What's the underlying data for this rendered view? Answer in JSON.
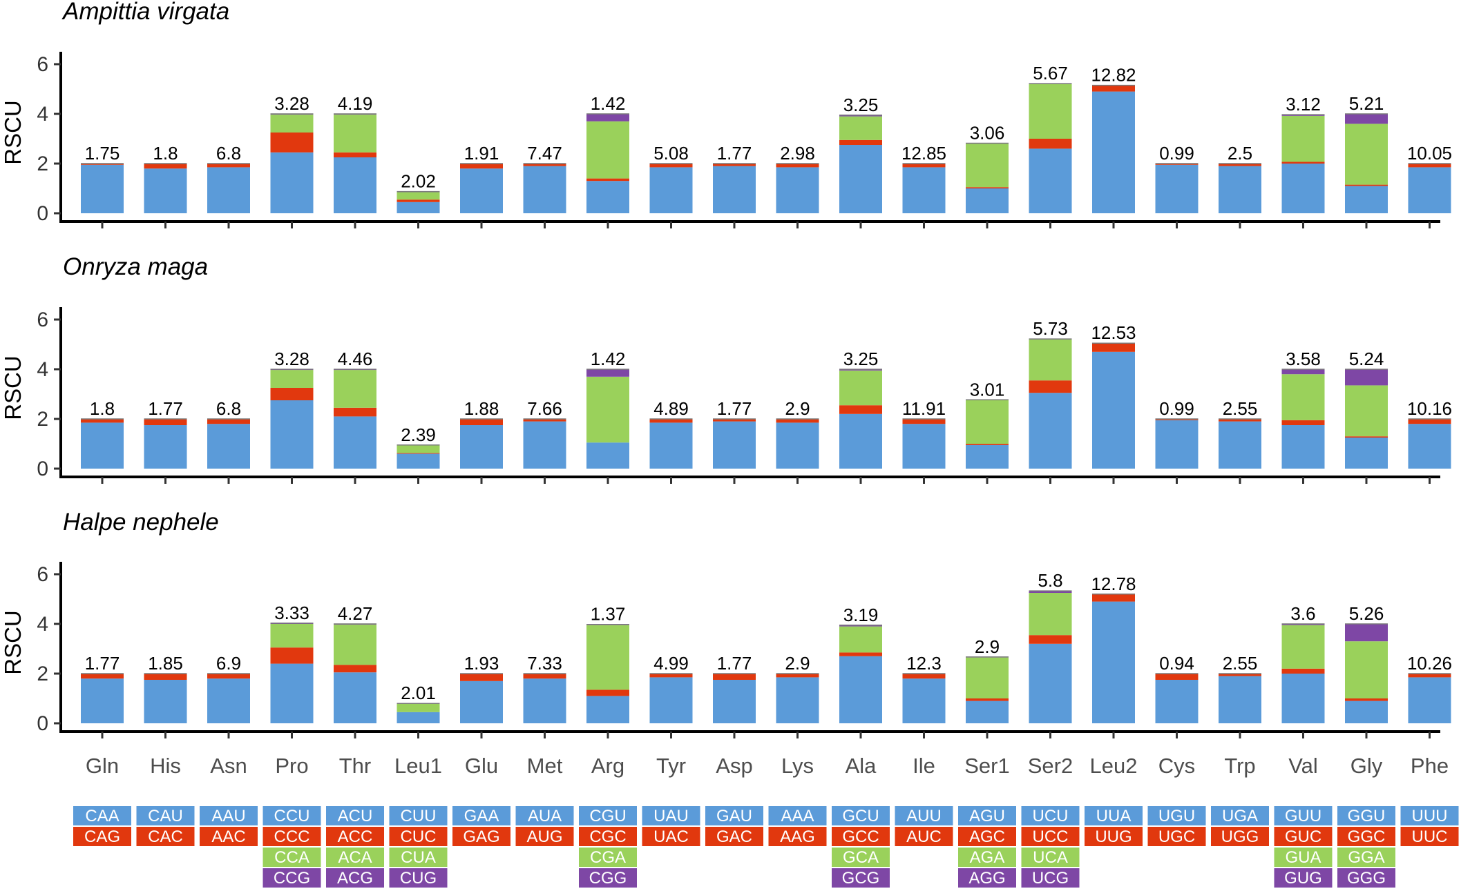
{
  "chart_data": {
    "type": "bar",
    "stacked": true,
    "ylabel": "RSCU",
    "ylim": [
      0,
      6.5
    ],
    "yticks": [
      0,
      2,
      4,
      6
    ],
    "grid": false,
    "layer_colors": [
      "#5B9BD9",
      "#E1380E",
      "#9AD15B",
      "#7E47A5"
    ],
    "categories": [
      "Gln",
      "His",
      "Asn",
      "Pro",
      "Thr",
      "Leu1",
      "Glu",
      "Met",
      "Arg",
      "Tyr",
      "Asp",
      "Lys",
      "Ala",
      "Ile",
      "Ser1",
      "Ser2",
      "Leu2",
      "Cys",
      "Trp",
      "Val",
      "Gly",
      "Phe"
    ],
    "codons": [
      [
        "CAA",
        "CAG"
      ],
      [
        "CAU",
        "CAC"
      ],
      [
        "AAU",
        "AAC"
      ],
      [
        "CCU",
        "CCC",
        "CCA",
        "CCG"
      ],
      [
        "ACU",
        "ACC",
        "ACA",
        "ACG"
      ],
      [
        "CUU",
        "CUC",
        "CUA",
        "CUG"
      ],
      [
        "GAA",
        "GAG"
      ],
      [
        "AUA",
        "AUG"
      ],
      [
        "CGU",
        "CGC",
        "CGA",
        "CGG"
      ],
      [
        "UAU",
        "UAC"
      ],
      [
        "GAU",
        "GAC"
      ],
      [
        "AAA",
        "AAG"
      ],
      [
        "GCU",
        "GCC",
        "GCA",
        "GCG"
      ],
      [
        "AUU",
        "AUC"
      ],
      [
        "AGU",
        "AGC",
        "AGA",
        "AGG"
      ],
      [
        "UCU",
        "UCC",
        "UCA",
        "UCG"
      ],
      [
        "UUA",
        "UUG"
      ],
      [
        "UGU",
        "UGC"
      ],
      [
        "UGA",
        "UGG"
      ],
      [
        "GUU",
        "GUC",
        "GUA",
        "GUG"
      ],
      [
        "GGU",
        "GGC",
        "GGA",
        "GGG"
      ],
      [
        "UUU",
        "UUC"
      ]
    ],
    "panels": [
      {
        "species": "Ampittia virgata",
        "labels": [
          "1.75",
          "1.8",
          "6.8",
          "3.28",
          "4.19",
          "2.02",
          "1.91",
          "7.47",
          "1.42",
          "5.08",
          "1.77",
          "2.98",
          "3.25",
          "12.85",
          "3.06",
          "5.67",
          "12.82",
          "0.99",
          "2.5",
          "3.12",
          "5.21",
          "10.05"
        ],
        "stacks": [
          [
            1.95,
            0.05
          ],
          [
            1.8,
            0.2
          ],
          [
            1.85,
            0.15
          ],
          [
            2.45,
            0.8,
            0.72,
            0.03
          ],
          [
            2.25,
            0.2,
            1.52,
            0.03
          ],
          [
            0.45,
            0.1,
            0.3,
            0.02
          ],
          [
            1.8,
            0.2
          ],
          [
            1.9,
            0.1
          ],
          [
            1.3,
            0.1,
            2.3,
            0.3
          ],
          [
            1.85,
            0.15
          ],
          [
            1.9,
            0.1
          ],
          [
            1.85,
            0.15
          ],
          [
            2.75,
            0.2,
            0.95,
            0.05
          ],
          [
            1.85,
            0.15
          ],
          [
            1.0,
            0.05,
            1.75,
            0.02
          ],
          [
            2.6,
            0.4,
            2.2,
            0.02
          ],
          [
            4.9,
            0.25
          ],
          [
            1.95,
            0.05
          ],
          [
            1.9,
            0.1
          ],
          [
            2.0,
            0.07,
            1.85,
            0.05
          ],
          [
            1.1,
            0.05,
            2.45,
            0.4
          ],
          [
            1.85,
            0.15
          ]
        ]
      },
      {
        "species": "Onryza maga",
        "labels": [
          "1.8",
          "1.77",
          "6.8",
          "3.28",
          "4.46",
          "2.39",
          "1.88",
          "7.66",
          "1.42",
          "4.89",
          "1.77",
          "2.9",
          "3.25",
          "11.91",
          "3.01",
          "5.73",
          "12.53",
          "0.99",
          "2.55",
          "3.58",
          "5.24",
          "10.16"
        ],
        "stacks": [
          [
            1.85,
            0.15
          ],
          [
            1.75,
            0.25
          ],
          [
            1.8,
            0.2
          ],
          [
            2.75,
            0.5,
            0.72,
            0.03
          ],
          [
            2.1,
            0.35,
            1.52,
            0.03
          ],
          [
            0.6,
            0.03,
            0.3,
            0.02
          ],
          [
            1.75,
            0.25
          ],
          [
            1.9,
            0.1
          ],
          [
            1.05,
            0.0,
            2.65,
            0.3
          ],
          [
            1.85,
            0.15
          ],
          [
            1.9,
            0.1
          ],
          [
            1.85,
            0.15
          ],
          [
            2.2,
            0.35,
            1.4,
            0.05
          ],
          [
            1.8,
            0.2
          ],
          [
            0.95,
            0.05,
            1.75,
            0.02
          ],
          [
            3.05,
            0.5,
            1.65,
            0.02
          ],
          [
            4.7,
            0.35
          ],
          [
            1.95,
            0.05
          ],
          [
            1.9,
            0.1
          ],
          [
            1.75,
            0.2,
            1.85,
            0.2
          ],
          [
            1.25,
            0.05,
            2.05,
            0.65
          ],
          [
            1.8,
            0.2
          ]
        ]
      },
      {
        "species": "Halpe nephele",
        "labels": [
          "1.77",
          "1.85",
          "6.9",
          "3.33",
          "4.27",
          "2.01",
          "1.93",
          "7.33",
          "1.37",
          "4.99",
          "1.77",
          "2.9",
          "3.19",
          "12.3",
          "2.9",
          "5.8",
          "12.78",
          "0.94",
          "2.55",
          "3.6",
          "5.26",
          "10.26"
        ],
        "stacks": [
          [
            1.8,
            0.2
          ],
          [
            1.75,
            0.25
          ],
          [
            1.8,
            0.2
          ],
          [
            2.4,
            0.65,
            0.95,
            0.03
          ],
          [
            2.05,
            0.3,
            1.62,
            0.03
          ],
          [
            0.45,
            0.0,
            0.35,
            0.0
          ],
          [
            1.7,
            0.3
          ],
          [
            1.8,
            0.2
          ],
          [
            1.1,
            0.25,
            2.6,
            0.03
          ],
          [
            1.85,
            0.15
          ],
          [
            1.75,
            0.25
          ],
          [
            1.85,
            0.15
          ],
          [
            2.7,
            0.15,
            1.05,
            0.05
          ],
          [
            1.8,
            0.2
          ],
          [
            0.9,
            0.1,
            1.65,
            0.02
          ],
          [
            3.2,
            0.35,
            1.7,
            0.08
          ],
          [
            4.9,
            0.3
          ],
          [
            1.75,
            0.25
          ],
          [
            1.9,
            0.1
          ],
          [
            2.0,
            0.2,
            1.75,
            0.05
          ],
          [
            0.9,
            0.1,
            2.3,
            0.7
          ],
          [
            1.85,
            0.15
          ]
        ]
      }
    ]
  }
}
